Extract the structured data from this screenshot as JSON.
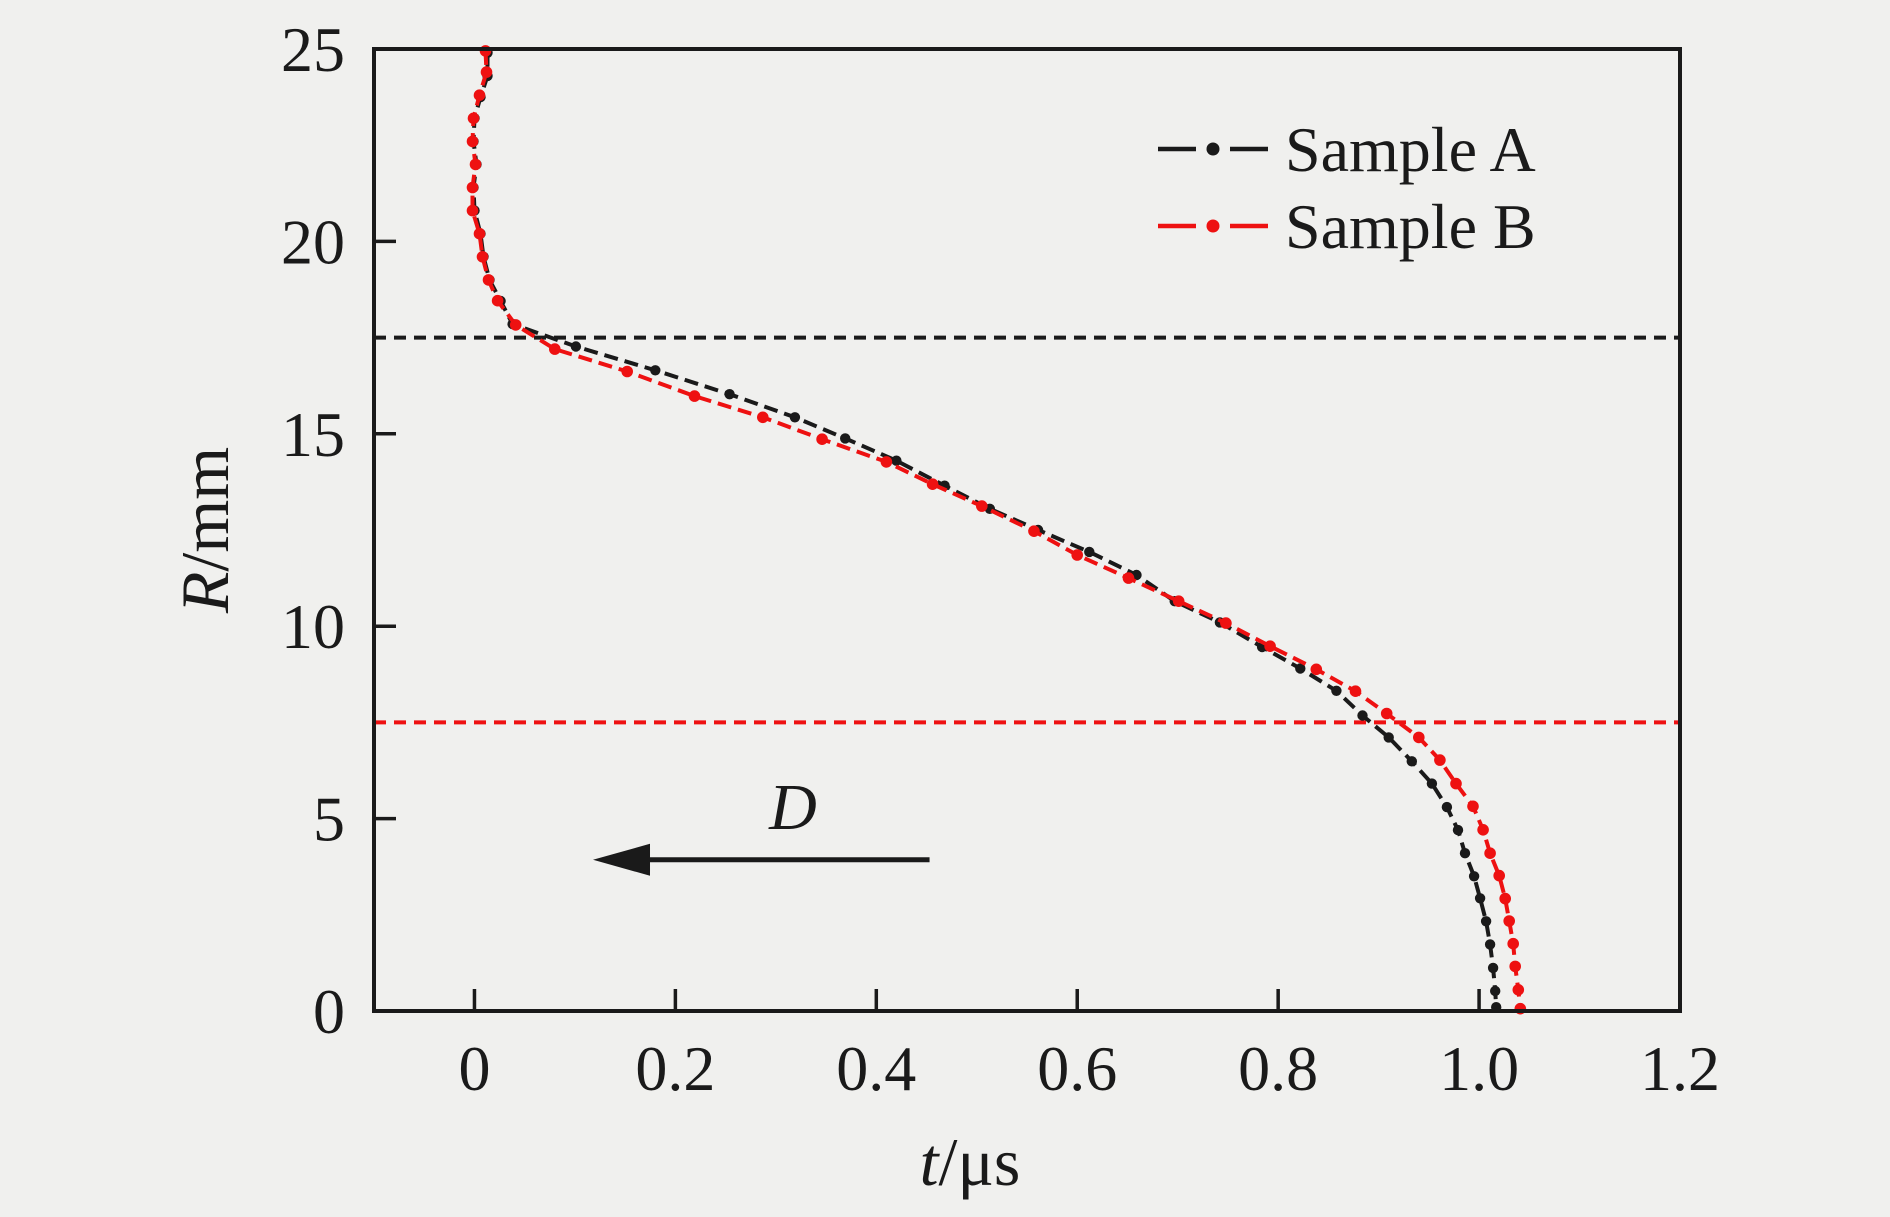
{
  "figure": {
    "background_color": "#f0f0ee",
    "axis_color": "#1a1a1a"
  },
  "chart_data": {
    "type": "line",
    "title": "",
    "xlabel_var": "t",
    "xlabel_unit": "/μs",
    "ylabel_var": "R",
    "ylabel_unit": "/mm",
    "xlim": [
      -0.1,
      1.2
    ],
    "ylim": [
      0,
      25
    ],
    "grid": false,
    "xticks": {
      "values": [
        0,
        0.2,
        0.4,
        0.6,
        0.8,
        1.0,
        1.2
      ],
      "labels": [
        "0",
        "0.2",
        "0.4",
        "0.6",
        "0.8",
        "1.0",
        "1.2"
      ]
    },
    "yticks": {
      "values": [
        0,
        5,
        10,
        15,
        20,
        25
      ],
      "labels": [
        "0",
        "5",
        "10",
        "15",
        "20",
        "25"
      ]
    },
    "legend": {
      "position": "upper right",
      "entries": [
        "Sample A",
        "Sample B"
      ]
    },
    "series": [
      {
        "name": "Sample A",
        "color": "#1a1a1a",
        "linestyle": "dash-dot",
        "marker": "dot",
        "marker_radius": 5.2,
        "linewidth": 4,
        "points_t_R": [
          [
            0.013,
            24.9
          ],
          [
            0.013,
            24.3
          ],
          [
            0.006,
            23.75
          ],
          [
            0.0,
            23.2
          ],
          [
            -0.001,
            22.6
          ],
          [
            0.002,
            22.0
          ],
          [
            -0.001,
            21.4
          ],
          [
            0.0,
            20.8
          ],
          [
            0.006,
            20.2
          ],
          [
            0.009,
            19.6
          ],
          [
            0.015,
            19.0
          ],
          [
            0.026,
            18.45
          ],
          [
            0.038,
            17.85
          ],
          [
            0.101,
            17.27
          ],
          [
            0.18,
            16.65
          ],
          [
            0.254,
            16.03
          ],
          [
            0.319,
            15.43
          ],
          [
            0.369,
            14.88
          ],
          [
            0.42,
            14.3
          ],
          [
            0.468,
            13.65
          ],
          [
            0.513,
            13.05
          ],
          [
            0.561,
            12.5
          ],
          [
            0.612,
            11.93
          ],
          [
            0.659,
            11.33
          ],
          [
            0.697,
            10.65
          ],
          [
            0.742,
            10.1
          ],
          [
            0.784,
            9.46
          ],
          [
            0.822,
            8.9
          ],
          [
            0.858,
            8.32
          ],
          [
            0.884,
            7.68
          ],
          [
            0.91,
            7.11
          ],
          [
            0.933,
            6.49
          ],
          [
            0.953,
            5.91
          ],
          [
            0.968,
            5.3
          ],
          [
            0.979,
            4.7
          ],
          [
            0.986,
            4.1
          ],
          [
            0.995,
            3.5
          ],
          [
            1.001,
            2.93
          ],
          [
            1.007,
            2.33
          ],
          [
            1.011,
            1.73
          ],
          [
            1.014,
            1.12
          ],
          [
            1.016,
            0.52
          ],
          [
            1.017,
            0.1
          ]
        ]
      },
      {
        "name": "Sample B",
        "color": "#ee1111",
        "linestyle": "dash-dot",
        "marker": "dot",
        "marker_radius": 5.8,
        "linewidth": 4,
        "points_t_R": [
          [
            0.011,
            24.95
          ],
          [
            0.012,
            24.4
          ],
          [
            0.005,
            23.8
          ],
          [
            -0.001,
            23.2
          ],
          [
            -0.002,
            22.6
          ],
          [
            0.001,
            22.0
          ],
          [
            -0.002,
            21.4
          ],
          [
            -0.002,
            20.8
          ],
          [
            0.005,
            20.2
          ],
          [
            0.008,
            19.6
          ],
          [
            0.014,
            19.0
          ],
          [
            0.023,
            18.46
          ],
          [
            0.041,
            17.83
          ],
          [
            0.08,
            17.2
          ],
          [
            0.152,
            16.62
          ],
          [
            0.219,
            15.98
          ],
          [
            0.287,
            15.43
          ],
          [
            0.346,
            14.86
          ],
          [
            0.41,
            14.27
          ],
          [
            0.456,
            13.69
          ],
          [
            0.505,
            13.12
          ],
          [
            0.557,
            12.47
          ],
          [
            0.6,
            11.85
          ],
          [
            0.651,
            11.25
          ],
          [
            0.701,
            10.65
          ],
          [
            0.748,
            10.08
          ],
          [
            0.792,
            9.48
          ],
          [
            0.838,
            8.88
          ],
          [
            0.877,
            8.31
          ],
          [
            0.908,
            7.73
          ],
          [
            0.94,
            7.11
          ],
          [
            0.961,
            6.52
          ],
          [
            0.977,
            5.91
          ],
          [
            0.994,
            5.32
          ],
          [
            1.004,
            4.71
          ],
          [
            1.011,
            4.1
          ],
          [
            1.02,
            3.52
          ],
          [
            1.026,
            2.92
          ],
          [
            1.03,
            2.34
          ],
          [
            1.034,
            1.75
          ],
          [
            1.036,
            1.16
          ],
          [
            1.039,
            0.55
          ],
          [
            1.041,
            0.06
          ]
        ]
      }
    ],
    "reference_lines": [
      {
        "R": 17.5,
        "color": "#1a1a1a",
        "style": "dashed"
      },
      {
        "R": 7.5,
        "color": "#ee1111",
        "style": "dashed"
      }
    ],
    "annotation": {
      "label": "D",
      "arrow_tail_t": 0.453,
      "arrow_tip_t": 0.118,
      "arrow_R": 3.93,
      "label_t": 0.317,
      "label_R": 5.3
    }
  }
}
